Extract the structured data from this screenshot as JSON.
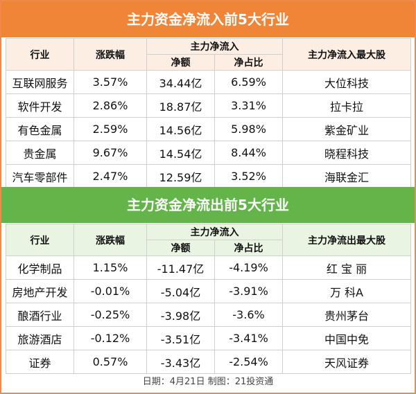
{
  "inflow": {
    "title": "主力资金净流入前5大行业",
    "headers": {
      "industry": "行业",
      "change": "涨跌幅",
      "group": "主力净流入",
      "net": "净额",
      "ratio": "净占比",
      "top_stock": "主力净流入最大股"
    },
    "rows": [
      {
        "industry": "互联网服务",
        "change": "3.57%",
        "net": "34.44亿",
        "ratio": "6.59%",
        "stock": "大位科技"
      },
      {
        "industry": "软件开发",
        "change": "2.86%",
        "net": "18.87亿",
        "ratio": "3.31%",
        "stock": "拉卡拉"
      },
      {
        "industry": "有色金属",
        "change": "2.59%",
        "net": "14.56亿",
        "ratio": "5.98%",
        "stock": "紫金矿业"
      },
      {
        "industry": "贵金属",
        "change": "9.67%",
        "net": "14.54亿",
        "ratio": "8.44%",
        "stock": "晓程科技"
      },
      {
        "industry": "汽车零部件",
        "change": "2.47%",
        "net": "12.59亿",
        "ratio": "3.52%",
        "stock": "海联金汇"
      }
    ]
  },
  "outflow": {
    "title": "主力资金净流出前5大行业",
    "headers": {
      "industry": "行业",
      "change": "涨跌幅",
      "group": "主力净流入",
      "net": "净额",
      "ratio": "净占比",
      "top_stock": "主力净流出最大股"
    },
    "rows": [
      {
        "industry": "化学制品",
        "change": "1.15%",
        "net": "-11.47亿",
        "ratio": "-4.19%",
        "stock": "红 宝 丽"
      },
      {
        "industry": "房地产开发",
        "change": "-0.01%",
        "net": "-5.04亿",
        "ratio": "-3.91%",
        "stock": "万 科A"
      },
      {
        "industry": "酿酒行业",
        "change": "-0.25%",
        "net": "-3.98亿",
        "ratio": "-3.6%",
        "stock": "贵州茅台"
      },
      {
        "industry": "旅游酒店",
        "change": "-0.12%",
        "net": "-3.51亿",
        "ratio": "-3.41%",
        "stock": "中国中免"
      },
      {
        "industry": "证券",
        "change": "0.57%",
        "net": "-3.43亿",
        "ratio": "-2.54%",
        "stock": "天风证券"
      }
    ]
  },
  "footer": "日期：4月21日 制图：21投资通",
  "colors": {
    "inflow_accent": "#f08538",
    "outflow_accent": "#63b54a"
  }
}
